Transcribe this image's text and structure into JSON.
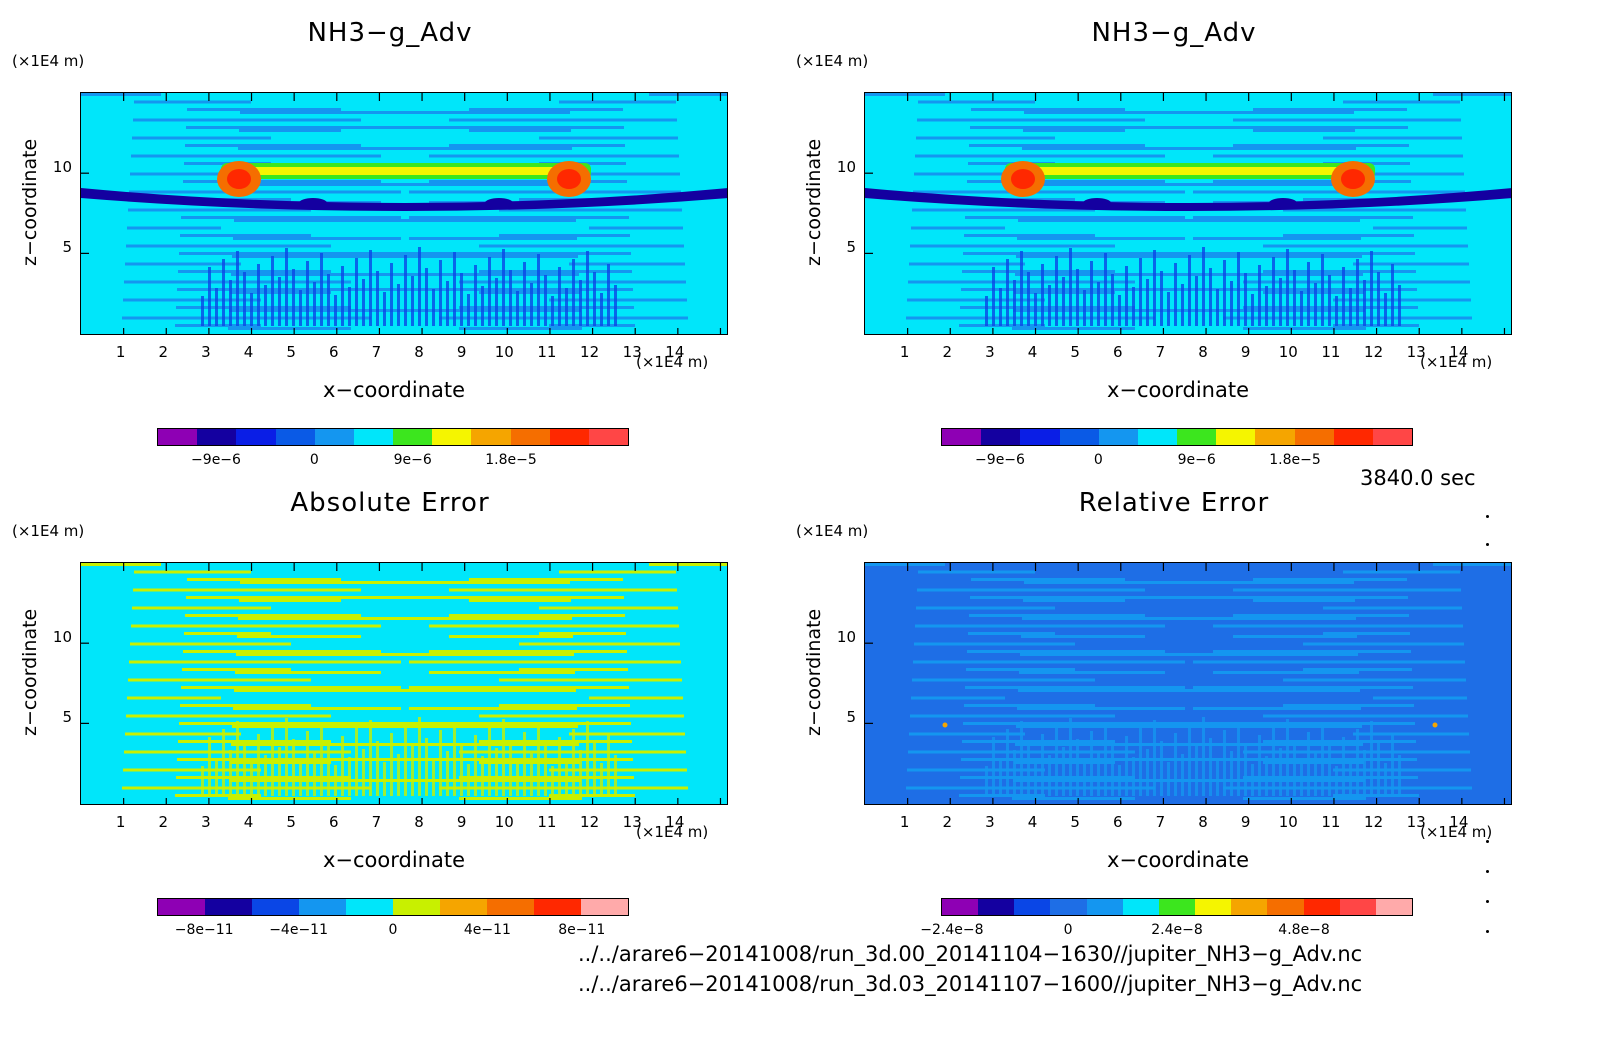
{
  "panels": [
    {
      "title": "NH3−g_Adv",
      "yunit": "(×1E4 m)",
      "xunit": "(×1E4 m)",
      "ylabel": "z−coordinate",
      "xlabel": "x−coordinate",
      "xticks": [
        "1",
        "2",
        "3",
        "4",
        "5",
        "6",
        "7",
        "8",
        "9",
        "10",
        "11",
        "12",
        "13",
        "14"
      ],
      "yticks": [
        "10",
        "5"
      ],
      "colors": [
        "#8e00b4",
        "#1400a0",
        "#0a1ee6",
        "#0a5ae6",
        "#1496f0",
        "#00e6fa",
        "#3ce61e",
        "#f5f500",
        "#f5a500",
        "#f56e00",
        "#ff2800",
        "#ff4646"
      ],
      "cb_labels": [
        "−9e−6",
        "0",
        "9e−6",
        "1.8e−5"
      ],
      "style": "field"
    },
    {
      "title": "NH3−g_Adv",
      "yunit": "(×1E4 m)",
      "xunit": "(×1E4 m)",
      "ylabel": "z−coordinate",
      "xlabel": "x−coordinate",
      "xticks": [
        "1",
        "2",
        "3",
        "4",
        "5",
        "6",
        "7",
        "8",
        "9",
        "10",
        "11",
        "12",
        "13",
        "14"
      ],
      "yticks": [
        "10",
        "5"
      ],
      "colors": [
        "#8e00b4",
        "#1400a0",
        "#0a1ee6",
        "#0a5ae6",
        "#1496f0",
        "#00e6fa",
        "#3ce61e",
        "#f5f500",
        "#f5a500",
        "#f56e00",
        "#ff2800",
        "#ff4646"
      ],
      "cb_labels": [
        "−9e−6",
        "0",
        "9e−6",
        "1.8e−5"
      ],
      "style": "field"
    },
    {
      "title": "Absolute Error",
      "yunit": "(×1E4 m)",
      "xunit": "(×1E4 m)",
      "ylabel": "z−coordinate",
      "xlabel": "x−coordinate",
      "xticks": [
        "1",
        "2",
        "3",
        "4",
        "5",
        "6",
        "7",
        "8",
        "9",
        "10",
        "11",
        "12",
        "13",
        "14"
      ],
      "yticks": [
        "10",
        "5"
      ],
      "colors": [
        "#8e00b4",
        "#1400a0",
        "#0a46e6",
        "#1496f0",
        "#00e6fa",
        "#c8f000",
        "#f5a500",
        "#f56e00",
        "#ff2800",
        "#ffaaaa"
      ],
      "cb_labels": [
        "−8e−11",
        "−4e−11",
        "0",
        "4e−11",
        "8e−11"
      ],
      "style": "abs"
    },
    {
      "title": "Relative Error",
      "yunit": "(×1E4 m)",
      "xunit": "(×1E4 m)",
      "ylabel": "z−coordinate",
      "xlabel": "x−coordinate",
      "xticks": [
        "1",
        "2",
        "3",
        "4",
        "5",
        "6",
        "7",
        "8",
        "9",
        "10",
        "11",
        "12",
        "13",
        "14"
      ],
      "yticks": [
        "10",
        "5"
      ],
      "colors": [
        "#8e00b4",
        "#1400a0",
        "#0a46e6",
        "#1e6ee6",
        "#1496f0",
        "#00e6fa",
        "#3ce61e",
        "#f5f500",
        "#f5a500",
        "#f56e00",
        "#ff2800",
        "#ff4646",
        "#ffaaaa"
      ],
      "cb_labels": [
        "−2.4e−8",
        "0",
        "2.4e−8",
        "4.8e−8"
      ],
      "style": "rel"
    }
  ],
  "time_label": "3840.0 sec",
  "files": [
    "../../arare6−20141008/run_3d.00_20141104−1630//jupiter_NH3−g_Adv.nc",
    "../../arare6−20141008/run_3d.03_20141107−1600//jupiter_NH3−g_Adv.nc"
  ],
  "chart_data": [
    {
      "type": "heatmap",
      "title": "NH3−g_Adv",
      "xlabel": "x−coordinate",
      "ylabel": "z−coordinate",
      "xlim": [
        0,
        15
      ],
      "ylim": [
        0,
        15
      ],
      "colorbar_ticks": [
        -9e-06,
        0,
        9e-06,
        1.8e-05
      ]
    },
    {
      "type": "heatmap",
      "title": "NH3−g_Adv",
      "xlabel": "x−coordinate",
      "ylabel": "z−coordinate",
      "xlim": [
        0,
        15
      ],
      "ylim": [
        0,
        15
      ],
      "colorbar_ticks": [
        -9e-06,
        0,
        9e-06,
        1.8e-05
      ]
    },
    {
      "type": "heatmap",
      "title": "Absolute Error",
      "xlabel": "x−coordinate",
      "ylabel": "z−coordinate",
      "xlim": [
        0,
        15
      ],
      "ylim": [
        0,
        15
      ],
      "colorbar_ticks": [
        -8e-11,
        -4e-11,
        0,
        4e-11,
        8e-11
      ]
    },
    {
      "type": "heatmap",
      "title": "Relative Error",
      "xlabel": "x−coordinate",
      "ylabel": "z−coordinate",
      "xlim": [
        0,
        15
      ],
      "ylim": [
        0,
        15
      ],
      "colorbar_ticks": [
        -2.4e-08,
        0,
        2.4e-08,
        4.8e-08
      ]
    }
  ]
}
